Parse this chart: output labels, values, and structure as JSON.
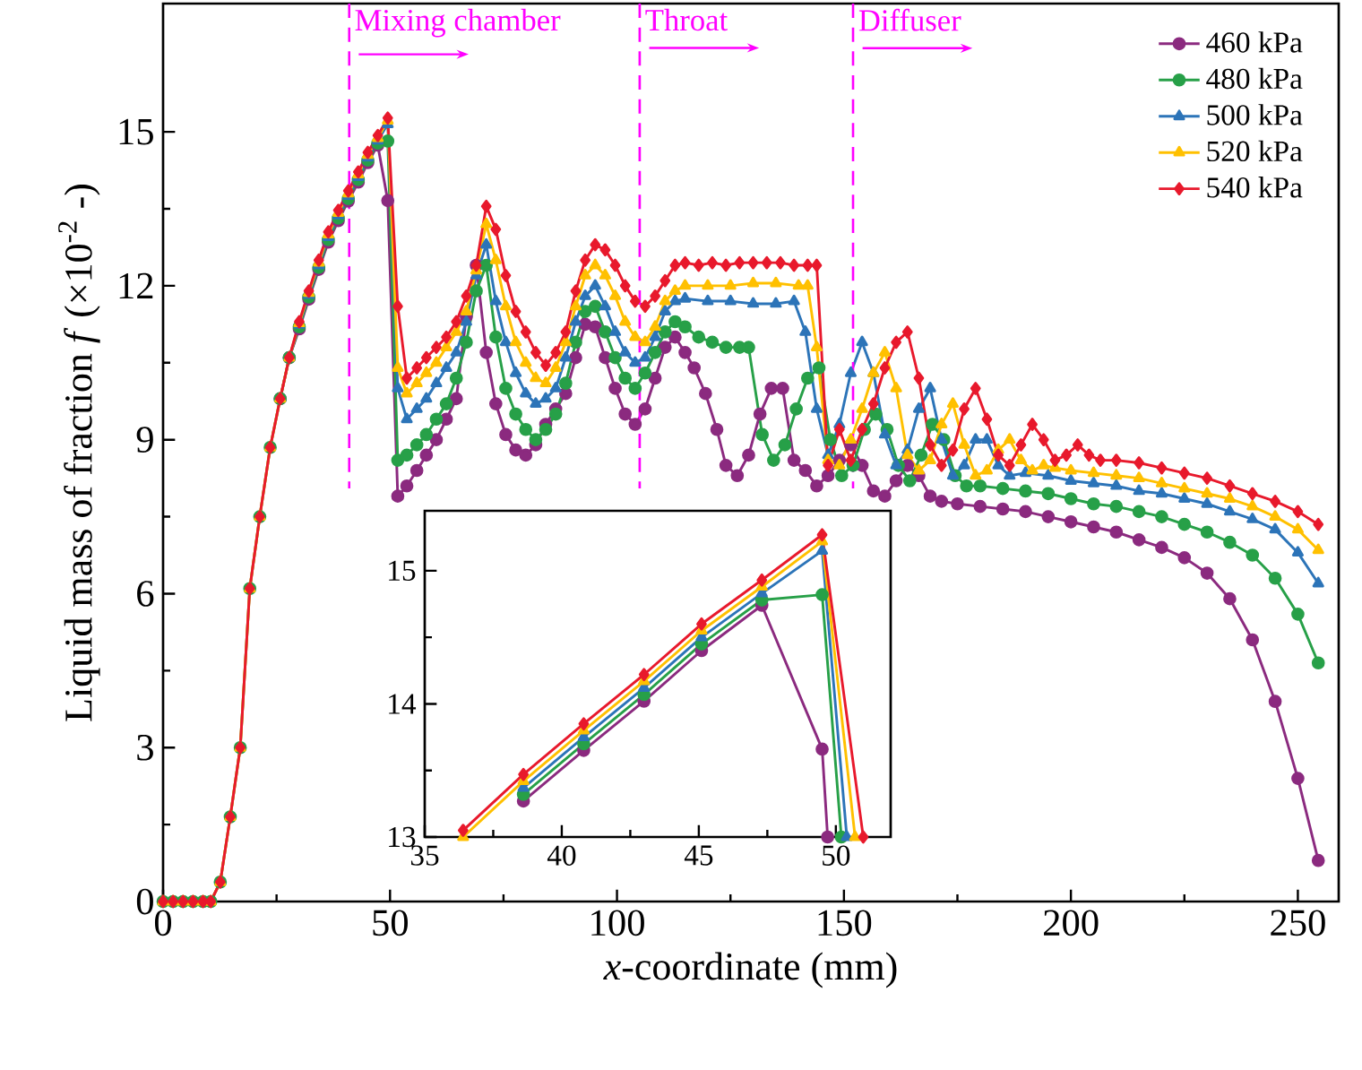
{
  "chart_data": [
    {
      "type": "line",
      "xlabel": "*x*-coordinate (mm)",
      "ylabel": "Liquid mass of fraction *f*  (×10$^{-2}$ -)",
      "xlim": [
        0,
        259
      ],
      "ylim": [
        0,
        17.5
      ],
      "xticks": [
        0,
        50,
        100,
        150,
        200,
        250
      ],
      "yticks": [
        0,
        3,
        6,
        9,
        12,
        15
      ],
      "legend": "top right",
      "line_style": "solid",
      "ref_lines": [
        {
          "axis": "x",
          "value": 41,
          "label": "Mixing chamber",
          "color": "#ff00ff",
          "line_style": "dashed"
        },
        {
          "axis": "x",
          "value": 105,
          "label": "Throat",
          "color": "#ff00ff",
          "line_style": "dashed"
        },
        {
          "axis": "x",
          "value": 152,
          "label": "Diffuser",
          "color": "#ff00ff",
          "line_style": "dashed"
        }
      ],
      "series": [
        {
          "name": "460 kPa",
          "color": "#8b2a7f",
          "marker": "circle",
          "x": [
            25.8,
            27.8,
            30,
            32.1,
            34.3,
            36.4,
            38.6,
            40.8,
            43,
            45.1,
            47.3,
            49.5,
            51.7,
            53.7,
            55.9,
            58,
            60.2,
            62.4,
            64.6,
            66.8,
            69,
            71.2,
            73.3,
            75.5,
            77.7,
            79.9,
            82.1,
            84.3,
            86.5,
            88.7,
            90.9,
            93,
            95.2,
            97.4,
            99.6,
            101.8,
            104,
            106.2,
            108.4,
            110.6,
            112.8,
            115,
            117,
            119.5,
            122,
            124,
            126.5,
            129,
            131.5,
            134,
            136.5,
            139,
            141.5,
            144,
            146.5,
            149,
            151.5,
            154,
            156.5,
            159,
            161.5,
            164,
            166.5,
            169,
            171.5,
            175,
            180,
            185,
            190,
            195,
            200,
            205,
            210,
            215,
            220,
            225,
            230,
            235,
            240,
            245,
            250,
            254.5
          ],
          "values": [
            9.8,
            10.6,
            11.16,
            11.74,
            12.32,
            12.85,
            13.27,
            13.65,
            14.02,
            14.4,
            14.74,
            13.66,
            7.9,
            8.1,
            8.4,
            8.7,
            9.0,
            9.4,
            9.8,
            11.4,
            12.4,
            10.7,
            9.7,
            9.1,
            8.8,
            8.7,
            8.9,
            9.3,
            9.6,
            9.9,
            10.6,
            11.25,
            11.2,
            10.6,
            10.0,
            9.5,
            9.3,
            9.6,
            10.2,
            10.8,
            11.0,
            10.7,
            10.4,
            9.9,
            9.2,
            8.5,
            8.3,
            8.7,
            9.5,
            10.0,
            10.0,
            8.6,
            8.4,
            8.1,
            8.3,
            8.6,
            8.9,
            8.5,
            8.0,
            7.9,
            8.2,
            8.5,
            8.3,
            7.9,
            7.8,
            7.75,
            7.7,
            7.65,
            7.6,
            7.5,
            7.4,
            7.3,
            7.2,
            7.05,
            6.9,
            6.7,
            6.4,
            5.9,
            5.1,
            3.9,
            2.4,
            0.8
          ]
        },
        {
          "name": "480 kPa",
          "color": "#27a048",
          "marker": "circle",
          "x": [
            0,
            2.2,
            4.4,
            6.6,
            8.8,
            10.5,
            12.6,
            14.8,
            17,
            19.1,
            21.3,
            23.6,
            25.8,
            27.8,
            30,
            32.1,
            34.3,
            36.4,
            38.6,
            40.8,
            43,
            45.1,
            47.3,
            49.5,
            51.7,
            53.7,
            55.9,
            58,
            60.2,
            62.4,
            64.6,
            66.8,
            69,
            71.2,
            73.3,
            75.5,
            77.7,
            79.9,
            82.1,
            84.3,
            86.5,
            88.7,
            90.9,
            93,
            95.2,
            97.4,
            99.6,
            101.8,
            104,
            106.2,
            108.4,
            110.6,
            112.8,
            115,
            118,
            121,
            124,
            127,
            129,
            132,
            134.5,
            137,
            139.5,
            142,
            144.5,
            147,
            149.5,
            152,
            154.5,
            157,
            159.5,
            162,
            164.5,
            167,
            169.5,
            172,
            174.5,
            177,
            180,
            185,
            190,
            195,
            200,
            205,
            210,
            215,
            220,
            225,
            230,
            235,
            240,
            245,
            250,
            254.5
          ],
          "values": [
            0,
            0,
            0,
            0,
            0,
            0,
            0.38,
            1.65,
            3.0,
            6.1,
            7.5,
            8.85,
            9.8,
            10.6,
            11.2,
            11.78,
            12.36,
            12.9,
            13.32,
            13.7,
            14.07,
            14.45,
            14.78,
            14.82,
            8.6,
            8.7,
            8.9,
            9.1,
            9.4,
            9.7,
            10.2,
            10.9,
            11.9,
            12.4,
            11.0,
            10.0,
            9.5,
            9.2,
            9.0,
            9.2,
            9.5,
            10.1,
            10.9,
            11.5,
            11.6,
            11.1,
            10.6,
            10.2,
            10.0,
            10.3,
            10.7,
            11.1,
            11.3,
            11.2,
            11.0,
            10.9,
            10.8,
            10.8,
            10.8,
            9.1,
            8.6,
            8.9,
            9.6,
            10.2,
            10.4,
            9.0,
            8.3,
            8.5,
            9.2,
            9.5,
            9.2,
            8.5,
            8.2,
            8.7,
            9.3,
            9.0,
            8.3,
            8.1,
            8.1,
            8.05,
            8.0,
            7.95,
            7.85,
            7.75,
            7.7,
            7.6,
            7.5,
            7.35,
            7.2,
            7.0,
            6.75,
            6.3,
            5.6,
            4.65
          ]
        },
        {
          "name": "500 kPa",
          "color": "#2c74b8",
          "marker": "triangle",
          "x": [
            27.8,
            30,
            32.1,
            34.3,
            36.4,
            38.6,
            40.8,
            43,
            45.1,
            47.3,
            49.5,
            51.7,
            53.7,
            55.9,
            58,
            60.2,
            62.4,
            64.6,
            66.8,
            69,
            71.2,
            73.3,
            75.5,
            77.7,
            79.9,
            82.1,
            84.3,
            86.5,
            88.7,
            90.9,
            93,
            95.2,
            97.4,
            99.6,
            101.8,
            104,
            106.2,
            108.4,
            110.6,
            112.8,
            115,
            120,
            125,
            130,
            135,
            139,
            141.5,
            144,
            146.5,
            149,
            151.5,
            154,
            156.5,
            159,
            161.5,
            164,
            166.5,
            169,
            171.5,
            174,
            176.5,
            179,
            181.5,
            184,
            186.5,
            190,
            195,
            200,
            205,
            210,
            215,
            220,
            225,
            230,
            235,
            240,
            245,
            250,
            254.5
          ],
          "values": [
            10.6,
            11.24,
            11.82,
            12.4,
            12.95,
            13.37,
            13.75,
            14.12,
            14.5,
            14.83,
            15.15,
            10.0,
            9.4,
            9.6,
            9.8,
            10.1,
            10.4,
            10.7,
            11.3,
            12.2,
            12.8,
            11.7,
            10.9,
            10.3,
            9.9,
            9.7,
            9.8,
            10.0,
            10.6,
            11.3,
            11.8,
            12.0,
            11.6,
            11.1,
            10.7,
            10.5,
            10.6,
            11.0,
            11.5,
            11.7,
            11.75,
            11.7,
            11.7,
            11.65,
            11.65,
            11.7,
            11.1,
            9.6,
            8.7,
            9.3,
            10.3,
            10.9,
            10.3,
            9.1,
            8.5,
            8.8,
            9.6,
            10.0,
            9.0,
            8.3,
            8.5,
            9.0,
            9.0,
            8.5,
            8.3,
            8.35,
            8.3,
            8.2,
            8.15,
            8.1,
            8.0,
            7.95,
            7.85,
            7.75,
            7.6,
            7.45,
            7.25,
            6.8,
            6.2
          ]
        },
        {
          "name": "520 kPa",
          "color": "#ffc000",
          "marker": "triangle",
          "x": [
            0,
            2.2,
            4.4,
            6.6,
            8.8,
            10.5,
            12.6,
            14.8,
            17,
            19.1,
            21.3,
            23.6,
            25.8,
            27.8,
            30,
            32.1,
            34.3,
            36.4,
            38.6,
            40.8,
            43,
            45.1,
            47.3,
            49.5,
            51.7,
            53.7,
            55.9,
            58,
            60.2,
            62.4,
            64.6,
            66.8,
            69,
            71.2,
            73.3,
            75.5,
            77.7,
            79.9,
            82.1,
            84.3,
            86.5,
            88.7,
            90.9,
            93,
            95.2,
            97.4,
            99.6,
            101.8,
            104,
            106.2,
            108.4,
            110.6,
            112.8,
            115,
            120,
            125,
            130,
            135,
            140,
            142,
            144,
            146.5,
            149,
            151.5,
            154,
            156.5,
            159,
            161.5,
            164,
            166.5,
            169,
            171.5,
            174,
            176.5,
            179,
            181.5,
            184,
            186.5,
            189,
            191.5,
            194,
            196.5,
            200,
            205,
            210,
            215,
            220,
            225,
            230,
            235,
            240,
            245,
            250,
            254.5
          ],
          "values": [
            0,
            0,
            0,
            0,
            0,
            0,
            0.38,
            1.65,
            3.0,
            6.1,
            7.5,
            8.85,
            9.8,
            10.6,
            11.27,
            11.86,
            12.45,
            13.0,
            13.42,
            13.8,
            14.17,
            14.55,
            14.88,
            15.22,
            10.4,
            9.9,
            10.1,
            10.3,
            10.5,
            10.8,
            11.1,
            11.5,
            12.3,
            13.2,
            12.5,
            11.6,
            10.9,
            10.5,
            10.2,
            10.1,
            10.4,
            10.9,
            11.6,
            12.2,
            12.4,
            12.2,
            11.8,
            11.3,
            11.0,
            10.9,
            11.2,
            11.7,
            11.9,
            12.0,
            12.0,
            12.0,
            12.05,
            12.05,
            12.0,
            12.0,
            10.8,
            8.6,
            8.5,
            9.0,
            9.6,
            10.3,
            10.7,
            10.0,
            8.7,
            8.4,
            8.6,
            9.3,
            9.7,
            8.9,
            8.3,
            8.4,
            8.8,
            9.0,
            8.6,
            8.4,
            8.5,
            8.45,
            8.4,
            8.35,
            8.3,
            8.25,
            8.15,
            8.05,
            7.95,
            7.85,
            7.7,
            7.5,
            7.25,
            6.85
          ]
        },
        {
          "name": "540 kPa",
          "color": "#e8192c",
          "marker": "diamond",
          "x": [
            0,
            2.2,
            4.4,
            6.6,
            8.8,
            10.5,
            12.6,
            14.8,
            17,
            19.1,
            21.3,
            23.6,
            25.8,
            27.8,
            30,
            32.1,
            34.3,
            36.4,
            38.6,
            40.8,
            43,
            45.1,
            47.3,
            49.5,
            51.7,
            53.7,
            55.9,
            58,
            60.2,
            62.4,
            64.6,
            66.8,
            69,
            71.2,
            73.3,
            75.5,
            77.7,
            79.9,
            82.1,
            84.3,
            86.5,
            88.7,
            90.9,
            93,
            95.2,
            97.4,
            99.6,
            101.8,
            104,
            106.2,
            108.4,
            110.6,
            112.8,
            115,
            118,
            121,
            124,
            127,
            130,
            133,
            136,
            139,
            142,
            144,
            146.5,
            149,
            151.5,
            154,
            156.5,
            159,
            161.5,
            164,
            166.5,
            169,
            171.5,
            174,
            176.5,
            179,
            181.5,
            184,
            186.5,
            189,
            191.5,
            194,
            196.5,
            199,
            201.5,
            204,
            206.5,
            210,
            215,
            220,
            225,
            230,
            235,
            240,
            245,
            250,
            254.5
          ],
          "values": [
            0,
            0,
            0,
            0,
            0,
            0,
            0.38,
            1.65,
            3.0,
            6.1,
            7.5,
            8.85,
            9.8,
            10.6,
            11.3,
            11.9,
            12.5,
            13.05,
            13.47,
            13.85,
            14.22,
            14.6,
            14.93,
            15.27,
            11.6,
            10.2,
            10.4,
            10.6,
            10.8,
            11.0,
            11.3,
            11.8,
            12.4,
            13.55,
            13.1,
            12.2,
            11.5,
            11.1,
            10.7,
            10.45,
            10.7,
            11.1,
            11.9,
            12.5,
            12.8,
            12.7,
            12.4,
            12.0,
            11.7,
            11.6,
            11.8,
            12.1,
            12.4,
            12.45,
            12.4,
            12.45,
            12.4,
            12.45,
            12.45,
            12.45,
            12.45,
            12.4,
            12.4,
            12.4,
            8.5,
            9.2,
            8.6,
            9.2,
            9.7,
            10.4,
            10.9,
            11.1,
            10.2,
            8.9,
            8.5,
            8.8,
            9.6,
            10.0,
            9.4,
            8.7,
            8.5,
            8.9,
            9.3,
            9.0,
            8.6,
            8.7,
            8.9,
            8.7,
            8.6,
            8.6,
            8.55,
            8.45,
            8.35,
            8.25,
            8.1,
            7.95,
            7.8,
            7.6,
            7.35
          ]
        }
      ]
    },
    {
      "type": "line",
      "xlim": [
        35,
        52
      ],
      "ylim": [
        13,
        15.45
      ],
      "xticks": [
        35,
        40,
        45,
        50
      ],
      "yticks": [
        13,
        14,
        15
      ],
      "line_style": "solid",
      "series": [
        {
          "color": "#8b2a7f",
          "marker": "circle",
          "x": [
            38.6,
            40.8,
            43,
            45.1,
            47.3,
            49.5,
            49.7
          ],
          "values": [
            13.27,
            13.65,
            14.02,
            14.4,
            14.74,
            13.66,
            13.0
          ]
        },
        {
          "color": "#27a048",
          "marker": "circle",
          "x": [
            38.6,
            40.8,
            43,
            45.1,
            47.3,
            49.5,
            50.2
          ],
          "values": [
            13.32,
            13.7,
            14.07,
            14.45,
            14.78,
            14.82,
            13.0
          ]
        },
        {
          "color": "#2c74b8",
          "marker": "triangle",
          "x": [
            38.6,
            40.8,
            43,
            45.1,
            47.3,
            49.5,
            50.4
          ],
          "values": [
            13.37,
            13.75,
            14.12,
            14.5,
            14.83,
            15.15,
            13.0
          ]
        },
        {
          "color": "#ffc000",
          "marker": "triangle",
          "x": [
            36.4,
            38.6,
            40.8,
            43,
            45.1,
            47.3,
            49.5,
            50.7
          ],
          "values": [
            13.0,
            13.42,
            13.8,
            14.17,
            14.55,
            14.88,
            15.22,
            13.0
          ]
        },
        {
          "color": "#e8192c",
          "marker": "diamond",
          "x": [
            36.4,
            38.6,
            40.8,
            43,
            45.1,
            47.3,
            49.5,
            51.0
          ],
          "values": [
            13.05,
            13.47,
            13.85,
            14.22,
            14.6,
            14.93,
            15.27,
            13.0
          ]
        }
      ]
    }
  ]
}
